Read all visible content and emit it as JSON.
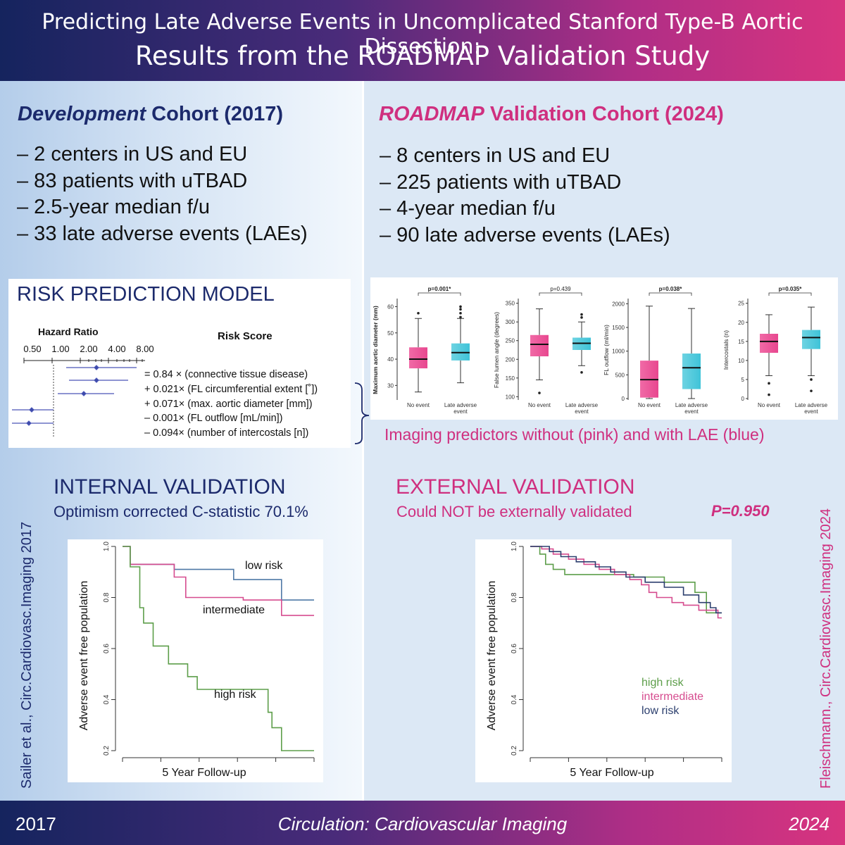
{
  "header": {
    "title_line1": "Predicting Late Adverse Events in Uncomplicated Stanford Type-B Aortic Dissection:",
    "title_line2": "Results from the ROADMAP Validation Study"
  },
  "development": {
    "title_italic": "Development",
    "title_rest": " Cohort (2017)",
    "bullets": [
      "– 2 centers in US and EU",
      "– 83 patients with uTBAD",
      "– 2.5-year median f/u",
      "– 33 late adverse events (LAEs)"
    ]
  },
  "validation": {
    "title_italic": "ROADMAP",
    "title_rest": " Validation Cohort (2024)",
    "bullets": [
      "– 8 centers in US and EU",
      "– 225 patients with uTBAD",
      "– 4-year median f/u",
      "– 90 late adverse events (LAEs)"
    ]
  },
  "risk_model": {
    "title": "RISK PREDICTION MODEL",
    "hazard_ratio_label": "Hazard Ratio",
    "risk_score_label": "Risk Score",
    "hr_ticks": [
      "0.50",
      "1.00",
      "2.00",
      "4.00",
      "8.00"
    ],
    "equation": [
      "= 0.84 × (connective tissue disease)",
      "+ 0.021× (FL circumferential extent [˚])",
      "+ 0.071× (max. aortic diameter [mm])",
      "– 0.001× (FL outflow [mL/min])",
      "– 0.094× (number of intercostals [n])"
    ]
  },
  "imaging_caption": "Imaging predictors without (pink) and with LAE (blue)",
  "internal": {
    "title": "INTERNAL VALIDATION",
    "subtitle": "Optimism corrected C-statistic 70.1%"
  },
  "external": {
    "title": "EXTERNAL VALIDATION",
    "subtitle": "Could NOT be externally validated",
    "p_value": "P=0.950"
  },
  "citations": {
    "left": "Sailer et al., Circ.Cardiovasc.Imaging 2017",
    "right": "Fleischmann., Circ.Cardiovasc.Imaging 2024"
  },
  "footer": {
    "left": "2017",
    "center": "Circulation: Cardiovascular Imaging",
    "right": "2024"
  },
  "colors": {
    "navy": "#1c2a6c",
    "magenta": "#cf2f7f",
    "pink_box": "#e8478f",
    "blue_box": "#3fc3d8",
    "km_blue": "#4f79a6",
    "km_pink": "#d64c8f",
    "km_green": "#5d9e4a"
  },
  "chart_data": [
    {
      "type": "box",
      "panel_labels": [
        "No event",
        "Late adverse event"
      ],
      "panels": [
        {
          "ylabel": "Maximum aortic diameter (mm)",
          "p": "p=0.001*",
          "yticks": [
            30,
            40,
            50,
            60
          ],
          "ylim": [
            25,
            62
          ],
          "no_event": {
            "q1": 36.5,
            "median": 40,
            "q3": 44.5,
            "lo": 27.5,
            "hi": 55.5,
            "outliers": [
              57.5
            ]
          },
          "lae": {
            "q1": 39.5,
            "median": 42.5,
            "q3": 46,
            "lo": 31,
            "hi": 55.5,
            "outliers": [
              56,
              57.5,
              59,
              60
            ]
          }
        },
        {
          "ylabel": "False lumen angle (degrees)",
          "p": "p=0.439",
          "yticks": [
            100,
            150,
            200,
            250,
            300,
            350
          ],
          "ylim": [
            95,
            355
          ],
          "no_event": {
            "q1": 208,
            "median": 240,
            "q3": 265,
            "lo": 145,
            "hi": 335,
            "outliers": [
              110
            ]
          },
          "lae": {
            "q1": 225,
            "median": 243,
            "q3": 258,
            "lo": 183,
            "hi": 300,
            "outliers": [
              312,
              320,
              165
            ]
          }
        },
        {
          "ylabel": "FL outflow (ml/min)",
          "p": "p=0.038*",
          "yticks": [
            0,
            500,
            1000,
            1500,
            2000
          ],
          "ylim": [
            0,
            2050
          ],
          "no_event": {
            "q1": 20,
            "median": 400,
            "q3": 800,
            "lo": 0,
            "hi": 1950,
            "outliers": []
          },
          "lae": {
            "q1": 200,
            "median": 650,
            "q3": 950,
            "lo": 0,
            "hi": 1900,
            "outliers": []
          }
        },
        {
          "ylabel": "Intercostals (n)",
          "p": "p=0.035*",
          "yticks": [
            0,
            5,
            10,
            15,
            20,
            25
          ],
          "ylim": [
            0,
            25.5
          ],
          "no_event": {
            "q1": 12,
            "median": 15,
            "q3": 17,
            "lo": 6,
            "hi": 22,
            "outliers": [
              4,
              1
            ]
          },
          "lae": {
            "q1": 13,
            "median": 16,
            "q3": 18,
            "lo": 6,
            "hi": 24,
            "outliers": [
              5,
              2
            ]
          }
        }
      ]
    },
    {
      "type": "line",
      "title": "Internal validation",
      "xlabel": "5 Year Follow-up",
      "ylabel": "Adverse event free population",
      "ylim": [
        0.2,
        1.0
      ],
      "yticks": [
        "0.2",
        "0.4",
        "0.6",
        "0.8",
        "1.0"
      ],
      "series": [
        {
          "name": "low risk",
          "color": "#4f79a6",
          "points": [
            [
              0,
              1.0
            ],
            [
              0.04,
              1.0
            ],
            [
              0.04,
              0.93
            ],
            [
              0.27,
              0.93
            ],
            [
              0.27,
              0.91
            ],
            [
              0.58,
              0.91
            ],
            [
              0.58,
              0.87
            ],
            [
              0.83,
              0.87
            ],
            [
              0.83,
              0.79
            ],
            [
              1.0,
              0.79
            ]
          ]
        },
        {
          "name": "intermediate",
          "color": "#d64c8f",
          "points": [
            [
              0,
              1.0
            ],
            [
              0.04,
              1.0
            ],
            [
              0.04,
              0.93
            ],
            [
              0.27,
              0.93
            ],
            [
              0.27,
              0.88
            ],
            [
              0.33,
              0.88
            ],
            [
              0.33,
              0.8
            ],
            [
              0.63,
              0.8
            ],
            [
              0.63,
              0.79
            ],
            [
              0.83,
              0.79
            ],
            [
              0.83,
              0.73
            ],
            [
              1.0,
              0.73
            ]
          ]
        },
        {
          "name": "high risk",
          "color": "#5d9e4a",
          "points": [
            [
              0,
              1.0
            ],
            [
              0.04,
              1.0
            ],
            [
              0.04,
              0.92
            ],
            [
              0.09,
              0.92
            ],
            [
              0.09,
              0.76
            ],
            [
              0.11,
              0.76
            ],
            [
              0.11,
              0.7
            ],
            [
              0.16,
              0.7
            ],
            [
              0.16,
              0.61
            ],
            [
              0.24,
              0.61
            ],
            [
              0.24,
              0.54
            ],
            [
              0.34,
              0.54
            ],
            [
              0.34,
              0.49
            ],
            [
              0.39,
              0.49
            ],
            [
              0.39,
              0.44
            ],
            [
              0.76,
              0.44
            ],
            [
              0.76,
              0.35
            ],
            [
              0.78,
              0.35
            ],
            [
              0.78,
              0.29
            ],
            [
              0.83,
              0.29
            ],
            [
              0.83,
              0.2
            ],
            [
              1.0,
              0.2
            ]
          ]
        }
      ]
    },
    {
      "type": "line",
      "title": "External validation",
      "xlabel": "5 Year Follow-up",
      "ylabel": "Adverse event free population",
      "ylim": [
        0.2,
        1.0
      ],
      "yticks": [
        "0.2",
        "0.4",
        "0.6",
        "0.8",
        "1.0"
      ],
      "series": [
        {
          "name": "high risk",
          "color": "#5d9e4a",
          "points": [
            [
              0,
              1.0
            ],
            [
              0.05,
              1.0
            ],
            [
              0.05,
              0.97
            ],
            [
              0.08,
              0.97
            ],
            [
              0.08,
              0.93
            ],
            [
              0.12,
              0.93
            ],
            [
              0.12,
              0.91
            ],
            [
              0.18,
              0.91
            ],
            [
              0.18,
              0.89
            ],
            [
              0.54,
              0.89
            ],
            [
              0.54,
              0.88
            ],
            [
              0.7,
              0.88
            ],
            [
              0.7,
              0.86
            ],
            [
              0.86,
              0.86
            ],
            [
              0.86,
              0.82
            ],
            [
              0.92,
              0.82
            ],
            [
              0.92,
              0.74
            ],
            [
              1.0,
              0.74
            ]
          ]
        },
        {
          "name": "intermediate",
          "color": "#d64c8f",
          "points": [
            [
              0,
              1.0
            ],
            [
              0.06,
              1.0
            ],
            [
              0.06,
              0.99
            ],
            [
              0.12,
              0.99
            ],
            [
              0.12,
              0.97
            ],
            [
              0.2,
              0.97
            ],
            [
              0.2,
              0.95
            ],
            [
              0.28,
              0.95
            ],
            [
              0.28,
              0.93
            ],
            [
              0.36,
              0.93
            ],
            [
              0.36,
              0.91
            ],
            [
              0.44,
              0.91
            ],
            [
              0.44,
              0.89
            ],
            [
              0.52,
              0.89
            ],
            [
              0.52,
              0.87
            ],
            [
              0.58,
              0.87
            ],
            [
              0.58,
              0.85
            ],
            [
              0.62,
              0.85
            ],
            [
              0.62,
              0.82
            ],
            [
              0.66,
              0.82
            ],
            [
              0.66,
              0.8
            ],
            [
              0.74,
              0.8
            ],
            [
              0.74,
              0.78
            ],
            [
              0.8,
              0.78
            ],
            [
              0.8,
              0.77
            ],
            [
              0.88,
              0.77
            ],
            [
              0.88,
              0.75
            ],
            [
              0.98,
              0.75
            ],
            [
              0.98,
              0.72
            ],
            [
              1.0,
              0.72
            ]
          ]
        },
        {
          "name": "low risk",
          "color": "#2c3f6e",
          "points": [
            [
              0,
              1.0
            ],
            [
              0.1,
              1.0
            ],
            [
              0.1,
              0.98
            ],
            [
              0.16,
              0.98
            ],
            [
              0.16,
              0.96
            ],
            [
              0.24,
              0.96
            ],
            [
              0.24,
              0.94
            ],
            [
              0.34,
              0.94
            ],
            [
              0.34,
              0.92
            ],
            [
              0.42,
              0.92
            ],
            [
              0.42,
              0.9
            ],
            [
              0.5,
              0.9
            ],
            [
              0.5,
              0.88
            ],
            [
              0.6,
              0.88
            ],
            [
              0.6,
              0.86
            ],
            [
              0.7,
              0.86
            ],
            [
              0.7,
              0.84
            ],
            [
              0.8,
              0.84
            ],
            [
              0.8,
              0.81
            ],
            [
              0.88,
              0.81
            ],
            [
              0.88,
              0.78
            ],
            [
              0.94,
              0.78
            ],
            [
              0.94,
              0.76
            ],
            [
              0.97,
              0.76
            ],
            [
              0.97,
              0.74
            ],
            [
              1.0,
              0.74
            ]
          ]
        }
      ]
    }
  ]
}
